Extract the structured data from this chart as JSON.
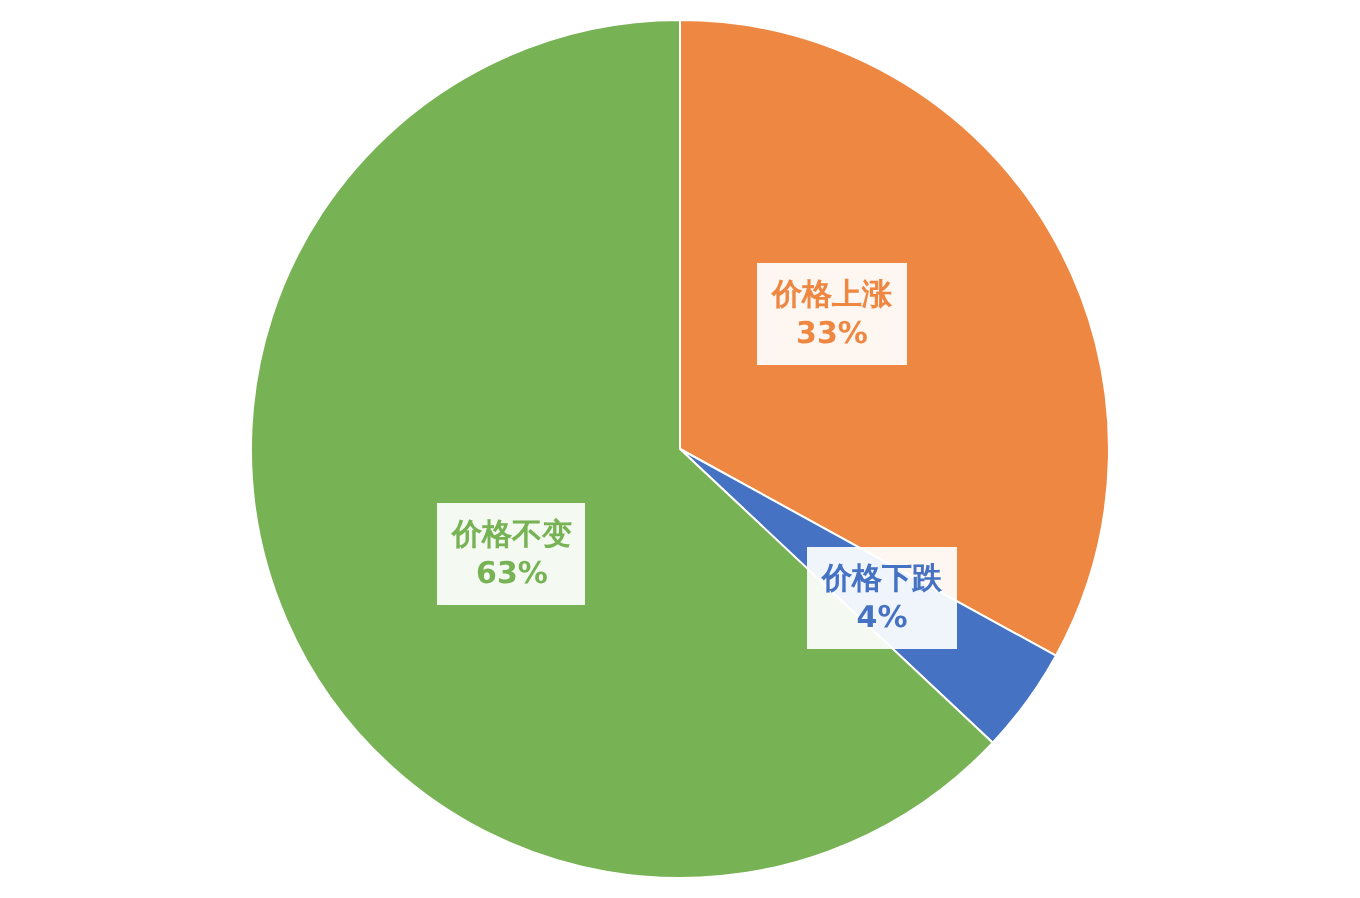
{
  "chart_data": {
    "type": "pie",
    "categories": [
      "价格上涨",
      "价格下跌",
      "价格不变"
    ],
    "values": [
      33,
      4,
      63
    ],
    "value_labels": [
      "33%",
      "4%",
      "63%"
    ],
    "colors": [
      "#ee8742",
      "#4672c4",
      "#77b254"
    ]
  }
}
